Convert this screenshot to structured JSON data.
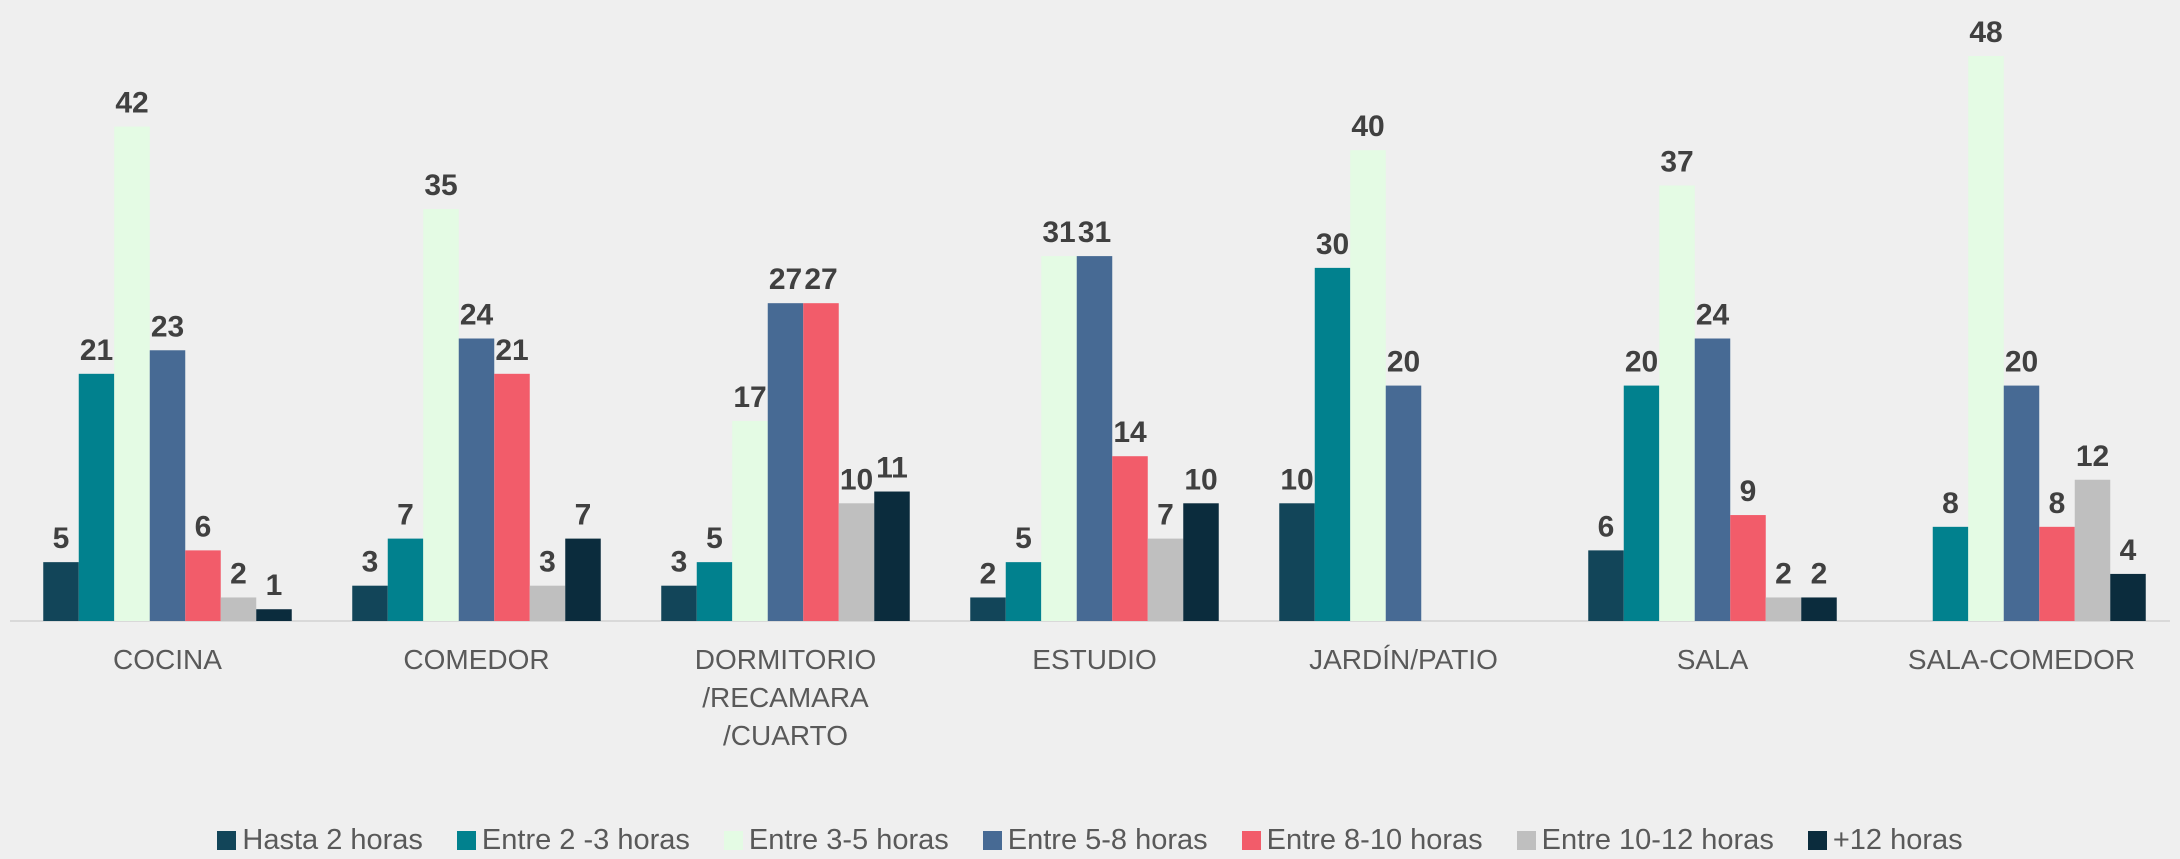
{
  "chart_data": {
    "type": "bar",
    "categories": [
      "COCINA",
      "COMEDOR",
      "DORMITORIO /RECAMARA /CUARTO",
      "ESTUDIO",
      "JARDÍN/PATIO",
      "SALA",
      "SALA-COMEDOR"
    ],
    "series": [
      {
        "name": "Hasta 2 horas",
        "color": "#124559",
        "values": [
          5,
          3,
          3,
          2,
          10,
          6,
          null
        ]
      },
      {
        "name": "Entre 2 -3 horas",
        "color": "#01818e",
        "values": [
          21,
          7,
          5,
          5,
          30,
          20,
          8
        ]
      },
      {
        "name": "Entre 3-5 horas",
        "color": "#e4fbe4",
        "values": [
          42,
          35,
          17,
          31,
          40,
          37,
          48
        ]
      },
      {
        "name": "Entre 5-8 horas",
        "color": "#476a94",
        "values": [
          23,
          24,
          27,
          31,
          20,
          24,
          20
        ]
      },
      {
        "name": "Entre 8-10 horas",
        "color": "#f25c6a",
        "values": [
          6,
          21,
          27,
          14,
          null,
          9,
          8
        ]
      },
      {
        "name": "Entre 10-12 horas",
        "color": "#bfbfbf",
        "values": [
          2,
          3,
          10,
          7,
          null,
          2,
          12
        ]
      },
      {
        "name": "+12 horas",
        "color": "#0b2c3d",
        "values": [
          1,
          7,
          11,
          10,
          null,
          2,
          4
        ]
      }
    ],
    "legend": "bottom"
  }
}
